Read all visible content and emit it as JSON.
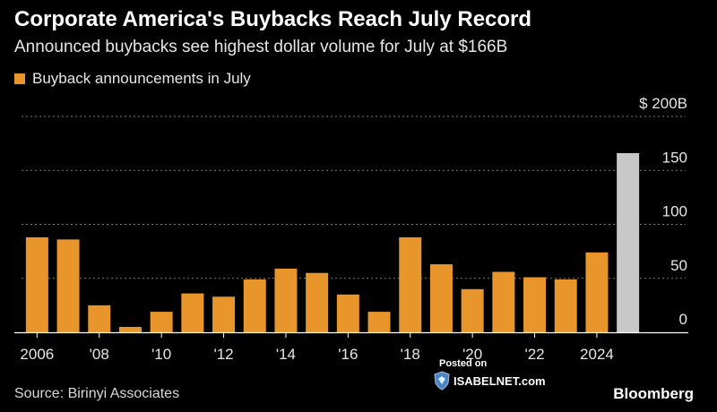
{
  "title": "Corporate America's Buybacks Reach July Record",
  "subtitle": "Announced buybacks see highest dollar volume for July at $166B",
  "legend": {
    "label": "Buyback announcements in July",
    "color": "#e8962c"
  },
  "colors": {
    "bar": "#e8962c",
    "highlight": "#c8c8c8",
    "grid": "#7a7a7a"
  },
  "source": "Source: Birinyi Associates",
  "brand": "Bloomberg",
  "watermark": {
    "posted": "Posted on",
    "site": "ISABELNET.com"
  },
  "chart_data": {
    "type": "bar",
    "categories": [
      "2006",
      "2007",
      "2008",
      "2009",
      "2010",
      "2011",
      "2012",
      "2013",
      "2014",
      "2015",
      "2016",
      "2017",
      "2018",
      "2019",
      "2020",
      "2021",
      "2022",
      "2023",
      "2024",
      "2025"
    ],
    "values": [
      88,
      86,
      25,
      5,
      19,
      36,
      33,
      49,
      59,
      55,
      35,
      19,
      88,
      63,
      40,
      56,
      51,
      49,
      74,
      166
    ],
    "highlight_index": 19,
    "x_tick_labels": [
      "2006",
      "'08",
      "'10",
      "'12",
      "'14",
      "'16",
      "'18",
      "'20",
      "'22",
      "2024"
    ],
    "x_tick_categories": [
      "2006",
      "2008",
      "2010",
      "2012",
      "2014",
      "2016",
      "2018",
      "2020",
      "2022",
      "2024"
    ],
    "y_ticks": [
      0,
      50,
      100,
      150,
      200
    ],
    "y_tick_labels": [
      "0",
      "50",
      "100",
      "150",
      "$ 200B"
    ],
    "ylim": [
      0,
      200
    ],
    "grid": true,
    "y_axis_position": "right"
  }
}
